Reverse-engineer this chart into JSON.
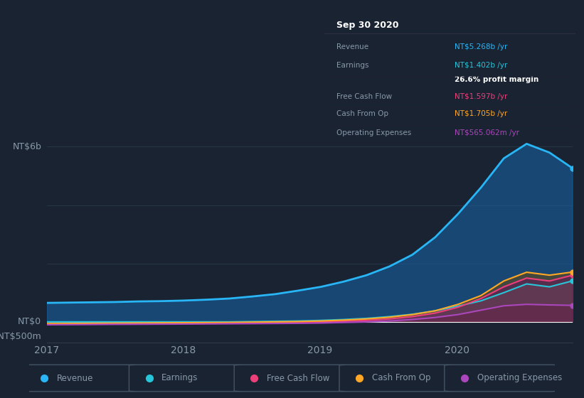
{
  "bg_color": "#1a2332",
  "plot_bg_color": "#1a2332",
  "grid_color": "#2a3a4a",
  "text_color": "#8899aa",
  "ylabel_top": "NT$6b",
  "ylabel_zero": "NT$0",
  "ylabel_neg": "-NT$500m",
  "xlabels": [
    "2017",
    "2018",
    "2019",
    "2020"
  ],
  "series_colors": {
    "revenue": "#29b6f6",
    "earnings": "#26c6da",
    "free_cash_flow": "#ec407a",
    "cash_from_op": "#ffa726",
    "operating_expenses": "#ab47bc"
  },
  "series_fill_colors": {
    "revenue": "#1565a8",
    "earnings": "#607d8b",
    "free_cash_flow": "#6a1060",
    "cash_from_op": "#7a4a00",
    "operating_expenses": "#4a1a6a"
  },
  "revenue": [
    650,
    660,
    670,
    680,
    700,
    710,
    730,
    760,
    800,
    870,
    950,
    1070,
    1200,
    1380,
    1600,
    1900,
    2300,
    2900,
    3700,
    4600,
    5600,
    6100,
    5800,
    5268
  ],
  "earnings": [
    0,
    0,
    0,
    0,
    0,
    0,
    0,
    0,
    0,
    10,
    20,
    30,
    50,
    80,
    120,
    180,
    260,
    380,
    540,
    720,
    1000,
    1300,
    1200,
    1402
  ],
  "free_cash_flow": [
    -80,
    -75,
    -70,
    -65,
    -60,
    -55,
    -50,
    -45,
    -40,
    -30,
    -20,
    -10,
    0,
    20,
    50,
    100,
    180,
    300,
    500,
    800,
    1200,
    1500,
    1400,
    1597
  ],
  "cash_from_op": [
    -60,
    -55,
    -50,
    -45,
    -40,
    -35,
    -30,
    -25,
    -20,
    -10,
    0,
    10,
    30,
    60,
    100,
    160,
    250,
    380,
    600,
    900,
    1400,
    1700,
    1600,
    1705
  ],
  "operating_expenses": [
    -100,
    -95,
    -90,
    -85,
    -82,
    -78,
    -75,
    -70,
    -65,
    -60,
    -55,
    -50,
    -40,
    -20,
    0,
    30,
    80,
    150,
    250,
    400,
    550,
    600,
    580,
    565
  ],
  "legend_items": [
    {
      "label": "Revenue",
      "color": "#29b6f6"
    },
    {
      "label": "Earnings",
      "color": "#26c6da"
    },
    {
      "label": "Free Cash Flow",
      "color": "#ec407a"
    },
    {
      "label": "Cash From Op",
      "color": "#ffa726"
    },
    {
      "label": "Operating Expenses",
      "color": "#ab47bc"
    }
  ],
  "tooltip": {
    "date": "Sep 30 2020",
    "bg": "#000000",
    "border_color": "#333344",
    "rows": [
      {
        "label": "Revenue",
        "value": "NT$5.268b /yr",
        "color": "#29b6f6",
        "bold_value": false
      },
      {
        "label": "Earnings",
        "value": "NT$1.402b /yr",
        "color": "#26c6da",
        "bold_value": false
      },
      {
        "label": "",
        "value": "26.6% profit margin",
        "color": "#ffffff",
        "bold_value": true
      },
      {
        "label": "Free Cash Flow",
        "value": "NT$1.597b /yr",
        "color": "#ec407a",
        "bold_value": false
      },
      {
        "label": "Cash From Op",
        "value": "NT$1.705b /yr",
        "color": "#ffa726",
        "bold_value": false
      },
      {
        "label": "Operating Expenses",
        "value": "NT$565.062m /yr",
        "color": "#ab47bc",
        "bold_value": false
      }
    ]
  }
}
